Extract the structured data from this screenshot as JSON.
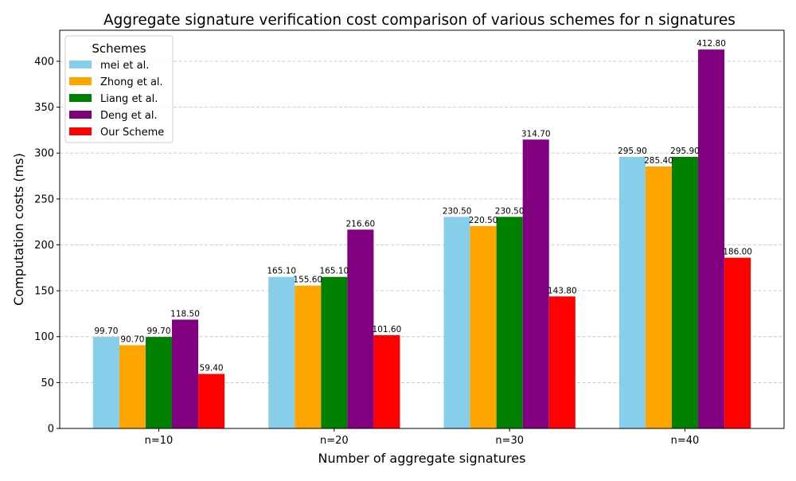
{
  "chart_data": {
    "type": "bar",
    "title": "Aggregate signature verification cost comparison of various schemes  for n signatures",
    "xlabel": "Number of aggregate signatures",
    "ylabel": "Computation costs (ms)",
    "categories": [
      "n=10",
      "n=20",
      "n=30",
      "n=40"
    ],
    "ylim": [
      0,
      433.8
    ],
    "yticks": [
      0,
      50,
      100,
      150,
      200,
      250,
      300,
      350,
      400
    ],
    "grid": "y-dashed",
    "legend": {
      "title": "Schemes",
      "placement": "top-left"
    },
    "series": [
      {
        "name": "mei et al.",
        "color": "#87ceeb",
        "values": [
          99.7,
          165.1,
          230.5,
          295.9
        ],
        "labels": [
          "99.70",
          "165.10",
          "230.50",
          "295.90"
        ]
      },
      {
        "name": "Zhong et al.",
        "color": "#ffa500",
        "values": [
          90.7,
          155.6,
          220.5,
          285.4
        ],
        "labels": [
          "90.70",
          "155.60",
          "220.50",
          "285.40"
        ]
      },
      {
        "name": "Liang et al.",
        "color": "#008000",
        "values": [
          99.7,
          165.1,
          230.5,
          295.9
        ],
        "labels": [
          "99.70",
          "165.10",
          "230.50",
          "295.90"
        ]
      },
      {
        "name": "Deng et al.",
        "color": "#800080",
        "values": [
          118.5,
          216.6,
          314.7,
          412.8
        ],
        "labels": [
          "118.50",
          "216.60",
          "314.70",
          "412.80"
        ]
      },
      {
        "name": "Our Scheme",
        "color": "#ff0000",
        "values": [
          59.4,
          101.6,
          143.8,
          186.0
        ],
        "labels": [
          "59.40",
          "101.60",
          "143.80",
          "186.00"
        ]
      }
    ]
  }
}
